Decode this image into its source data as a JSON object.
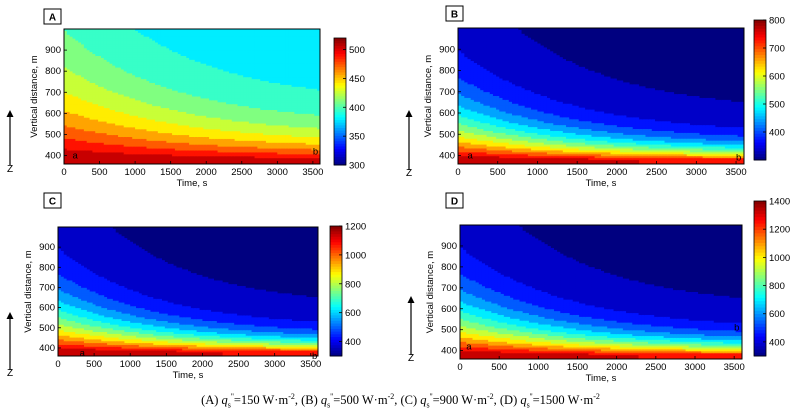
{
  "caption": {
    "a_prefix": "(A) ",
    "b_prefix": "(B) ",
    "c_prefix": "(C) ",
    "d_prefix": "(D) ",
    "q": "q",
    "sub": "s",
    "prime": "''",
    "a_val": "=150 W·m",
    "b_val": "=500 W·m",
    "c_val": "=900 W·m",
    "d_val": "=1500 W·m",
    "exp": "-2",
    "sep": ", "
  },
  "chart_data": [
    {
      "type": "contour",
      "panel": "A",
      "xlabel": "Time, s",
      "ylabel": "Vertical distance, m",
      "axis_arrow_label": "Z",
      "xlim": [
        0,
        3600
      ],
      "ylim": [
        360,
        1000
      ],
      "xticks": [
        "0",
        "500",
        "1000",
        "1500",
        "2000",
        "2500",
        "3000",
        "3500"
      ],
      "yticks": [
        "400",
        "500",
        "600",
        "700",
        "800",
        "900"
      ],
      "clim": [
        300,
        520
      ],
      "colorbar_ticks": [
        "300",
        "350",
        "400",
        "450",
        "500"
      ],
      "annotations": [
        {
          "text": "a",
          "x": 120,
          "y": 400
        },
        {
          "text": "b",
          "x": 3500,
          "y": 420
        }
      ]
    },
    {
      "type": "contour",
      "panel": "B",
      "xlabel": "Time, s",
      "ylabel": "Vertical distance, m",
      "axis_arrow_label": "Z",
      "xlim": [
        0,
        3600
      ],
      "ylim": [
        360,
        1000
      ],
      "xticks": [
        "0",
        "500",
        "1000",
        "1500",
        "2000",
        "2500",
        "3000",
        "3500"
      ],
      "yticks": [
        "400",
        "500",
        "600",
        "700",
        "800",
        "900"
      ],
      "clim": [
        300,
        800
      ],
      "colorbar_ticks": [
        "400",
        "500",
        "600",
        "700",
        "800"
      ],
      "annotations": [
        {
          "text": "a",
          "x": 120,
          "y": 400
        },
        {
          "text": "b",
          "x": 3500,
          "y": 390
        }
      ]
    },
    {
      "type": "contour",
      "panel": "C",
      "xlabel": "Time, s",
      "ylabel": "Vertical distance, m",
      "axis_arrow_label": "Z",
      "xlim": [
        0,
        3600
      ],
      "ylim": [
        360,
        1000
      ],
      "xticks": [
        "0",
        "500",
        "1000",
        "1500",
        "2000",
        "2500",
        "3000",
        "3500"
      ],
      "yticks": [
        "400",
        "500",
        "600",
        "700",
        "800",
        "900"
      ],
      "clim": [
        300,
        1200
      ],
      "colorbar_ticks": [
        "400",
        "600",
        "800",
        "1000",
        "1200"
      ],
      "annotations": [
        {
          "text": "a",
          "x": 300,
          "y": 375
        },
        {
          "text": "b",
          "x": 3600,
          "y": 360
        }
      ]
    },
    {
      "type": "contour",
      "panel": "D",
      "xlabel": "Time, s",
      "ylabel": "Vertical distance, m",
      "axis_arrow_label": "Z",
      "xlim": [
        0,
        3600
      ],
      "ylim": [
        360,
        1000
      ],
      "xticks": [
        "0",
        "500",
        "1000",
        "1500",
        "2000",
        "2500",
        "3000",
        "3500"
      ],
      "yticks": [
        "400",
        "500",
        "600",
        "700",
        "800",
        "900"
      ],
      "clim": [
        300,
        1400
      ],
      "colorbar_ticks": [
        "400",
        "600",
        "800",
        "1000",
        "1200",
        "1400"
      ],
      "annotations": [
        {
          "text": "a",
          "x": 80,
          "y": 420
        },
        {
          "text": "b",
          "x": 3500,
          "y": 510
        }
      ]
    }
  ]
}
